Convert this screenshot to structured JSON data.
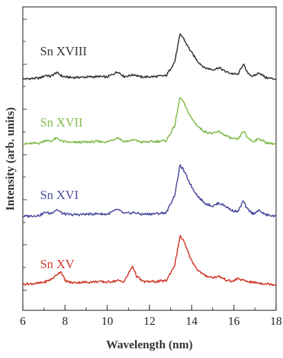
{
  "chart_data": {
    "type": "line",
    "xlabel": "Wavelength (nm)",
    "ylabel": "Intensity (arb. units)",
    "xlim": [
      6,
      18
    ],
    "x_ticks": [
      "6",
      "8",
      "10",
      "12",
      "14",
      "16",
      "18"
    ],
    "y_ticks_labeled": false,
    "grid": false,
    "legend": "none",
    "stacked_offset": true,
    "series": [
      {
        "name": "Sn XVIII",
        "color": "#333333",
        "points": [
          [
            6.0,
            0.05
          ],
          [
            6.8,
            0.07
          ],
          [
            7.1,
            0.13
          ],
          [
            7.3,
            0.1
          ],
          [
            7.6,
            0.18
          ],
          [
            7.9,
            0.1
          ],
          [
            8.3,
            0.08
          ],
          [
            9.0,
            0.09
          ],
          [
            9.6,
            0.1
          ],
          [
            10.0,
            0.09
          ],
          [
            10.5,
            0.2
          ],
          [
            10.8,
            0.1
          ],
          [
            11.3,
            0.14
          ],
          [
            11.6,
            0.09
          ],
          [
            12.3,
            0.1
          ],
          [
            12.8,
            0.12
          ],
          [
            13.2,
            0.4
          ],
          [
            13.45,
            0.95
          ],
          [
            13.6,
            0.88
          ],
          [
            13.8,
            0.72
          ],
          [
            14.0,
            0.58
          ],
          [
            14.3,
            0.4
          ],
          [
            14.6,
            0.28
          ],
          [
            15.0,
            0.24
          ],
          [
            15.3,
            0.28
          ],
          [
            15.6,
            0.2
          ],
          [
            15.9,
            0.16
          ],
          [
            16.2,
            0.14
          ],
          [
            16.45,
            0.36
          ],
          [
            16.6,
            0.2
          ],
          [
            16.9,
            0.1
          ],
          [
            17.2,
            0.18
          ],
          [
            17.5,
            0.08
          ],
          [
            18.0,
            0.05
          ]
        ]
      },
      {
        "name": "Sn XVII",
        "color": "#7fba4a",
        "points": [
          [
            6.0,
            0.05
          ],
          [
            6.8,
            0.07
          ],
          [
            7.1,
            0.13
          ],
          [
            7.3,
            0.1
          ],
          [
            7.6,
            0.17
          ],
          [
            7.9,
            0.1
          ],
          [
            8.3,
            0.08
          ],
          [
            9.0,
            0.09
          ],
          [
            9.6,
            0.1
          ],
          [
            10.0,
            0.09
          ],
          [
            10.5,
            0.18
          ],
          [
            10.8,
            0.1
          ],
          [
            11.3,
            0.13
          ],
          [
            11.6,
            0.09
          ],
          [
            12.3,
            0.1
          ],
          [
            12.8,
            0.12
          ],
          [
            13.2,
            0.42
          ],
          [
            13.45,
            1.0
          ],
          [
            13.6,
            0.9
          ],
          [
            13.8,
            0.72
          ],
          [
            14.0,
            0.56
          ],
          [
            14.3,
            0.4
          ],
          [
            14.6,
            0.3
          ],
          [
            15.0,
            0.26
          ],
          [
            15.3,
            0.3
          ],
          [
            15.6,
            0.22
          ],
          [
            15.9,
            0.16
          ],
          [
            16.2,
            0.14
          ],
          [
            16.45,
            0.32
          ],
          [
            16.6,
            0.2
          ],
          [
            16.9,
            0.1
          ],
          [
            17.2,
            0.16
          ],
          [
            17.5,
            0.08
          ],
          [
            18.0,
            0.05
          ]
        ]
      },
      {
        "name": "Sn XVI",
        "color": "#4c4c9e",
        "points": [
          [
            6.0,
            0.05
          ],
          [
            6.8,
            0.07
          ],
          [
            7.1,
            0.13
          ],
          [
            7.3,
            0.1
          ],
          [
            7.6,
            0.18
          ],
          [
            7.9,
            0.1
          ],
          [
            8.3,
            0.08
          ],
          [
            9.0,
            0.09
          ],
          [
            9.6,
            0.1
          ],
          [
            10.0,
            0.09
          ],
          [
            10.5,
            0.18
          ],
          [
            10.8,
            0.1
          ],
          [
            11.3,
            0.12
          ],
          [
            11.6,
            0.09
          ],
          [
            12.3,
            0.1
          ],
          [
            12.8,
            0.12
          ],
          [
            13.2,
            0.45
          ],
          [
            13.45,
            1.0
          ],
          [
            13.6,
            0.92
          ],
          [
            13.8,
            0.76
          ],
          [
            14.0,
            0.6
          ],
          [
            14.3,
            0.42
          ],
          [
            14.6,
            0.3
          ],
          [
            15.0,
            0.24
          ],
          [
            15.3,
            0.3
          ],
          [
            15.6,
            0.24
          ],
          [
            15.9,
            0.16
          ],
          [
            16.2,
            0.14
          ],
          [
            16.45,
            0.34
          ],
          [
            16.6,
            0.2
          ],
          [
            16.9,
            0.1
          ],
          [
            17.2,
            0.16
          ],
          [
            17.5,
            0.08
          ],
          [
            18.0,
            0.05
          ]
        ]
      },
      {
        "name": "Sn XV",
        "color": "#d03a2c",
        "points": [
          [
            6.0,
            0.05
          ],
          [
            6.8,
            0.07
          ],
          [
            7.1,
            0.1
          ],
          [
            7.4,
            0.16
          ],
          [
            7.8,
            0.3
          ],
          [
            8.0,
            0.12
          ],
          [
            8.3,
            0.08
          ],
          [
            9.0,
            0.09
          ],
          [
            9.6,
            0.1
          ],
          [
            10.0,
            0.09
          ],
          [
            10.5,
            0.12
          ],
          [
            10.8,
            0.1
          ],
          [
            11.2,
            0.4
          ],
          [
            11.4,
            0.2
          ],
          [
            11.7,
            0.1
          ],
          [
            12.3,
            0.1
          ],
          [
            12.8,
            0.12
          ],
          [
            13.2,
            0.42
          ],
          [
            13.45,
            0.98
          ],
          [
            13.6,
            0.9
          ],
          [
            13.8,
            0.7
          ],
          [
            14.0,
            0.5
          ],
          [
            14.3,
            0.32
          ],
          [
            14.6,
            0.22
          ],
          [
            15.0,
            0.18
          ],
          [
            15.3,
            0.2
          ],
          [
            15.6,
            0.14
          ],
          [
            15.9,
            0.1
          ],
          [
            16.2,
            0.16
          ],
          [
            16.45,
            0.12
          ],
          [
            16.7,
            0.1
          ],
          [
            17.0,
            0.08
          ],
          [
            17.5,
            0.06
          ],
          [
            18.0,
            0.04
          ]
        ]
      }
    ]
  }
}
